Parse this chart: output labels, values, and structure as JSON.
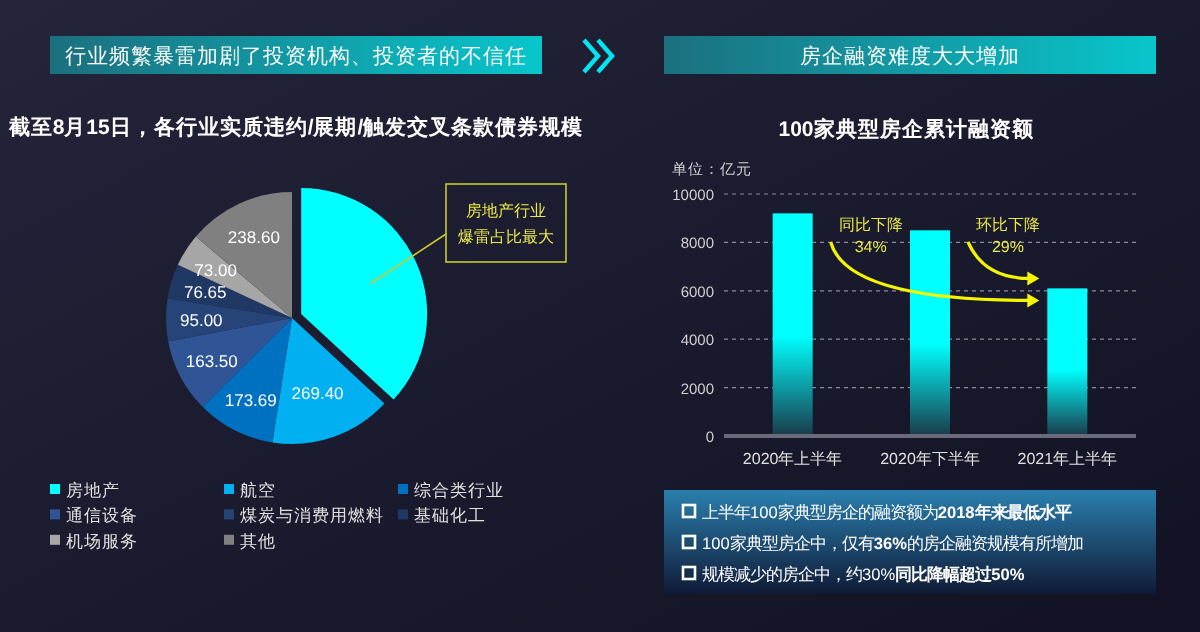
{
  "chart_data": [
    {
      "type": "pie",
      "title": "行业频繁暴雷加剧了投资机构、投资者的不信任",
      "subtitle": "截至8月15日，各行业实质违约/展期/触发交叉条款债券规模",
      "categories": [
        "房地产",
        "航空",
        "综合类行业",
        "通信设备",
        "煤炭与消费用燃料",
        "基础化工",
        "机场服务",
        "其他"
      ],
      "values": [
        637,
        269.4,
        173.69,
        163.5,
        95.0,
        76.65,
        73.0,
        238.6
      ],
      "value_labels": [
        null,
        "269.40",
        "173.69",
        "163.50",
        "95.00",
        "76.65",
        "73.00",
        "238.60"
      ],
      "colors": [
        "#00ffff",
        "#00b0f0",
        "#0070c0",
        "#2f5597",
        "#264478",
        "#1f3864",
        "#a6a6a6",
        "#808080"
      ],
      "legend": "bottom",
      "annotations": [
        {
          "text": "房地产行业爆雷占比最大",
          "x": "房地产"
        }
      ]
    },
    {
      "type": "bar",
      "title": "房企融资难度大大增加",
      "subtitle": "100家典型房企累计融资额",
      "ylabel": "单位：亿元",
      "categories": [
        "2020年上半年",
        "2020年下半年",
        "2021年上半年"
      ],
      "values": [
        9200,
        8500,
        6100
      ],
      "color": "#00ffff",
      "ylim": [
        0,
        10000
      ],
      "yticks": [
        0,
        2000,
        4000,
        6000,
        8000,
        10000
      ],
      "grid": "y",
      "annotations": [
        "同比下降 34%",
        "环比下降 29%"
      ]
    },
    {
      "type": "other",
      "annotations": [
        "上半年100家典型房企的融资额为**2018年来最低水平**",
        "100家典型房企中，仅有**36%**的房企融资规模有所增加",
        "规模减少的房企中，约30%**同比降幅超过50%**"
      ]
    }
  ]
}
